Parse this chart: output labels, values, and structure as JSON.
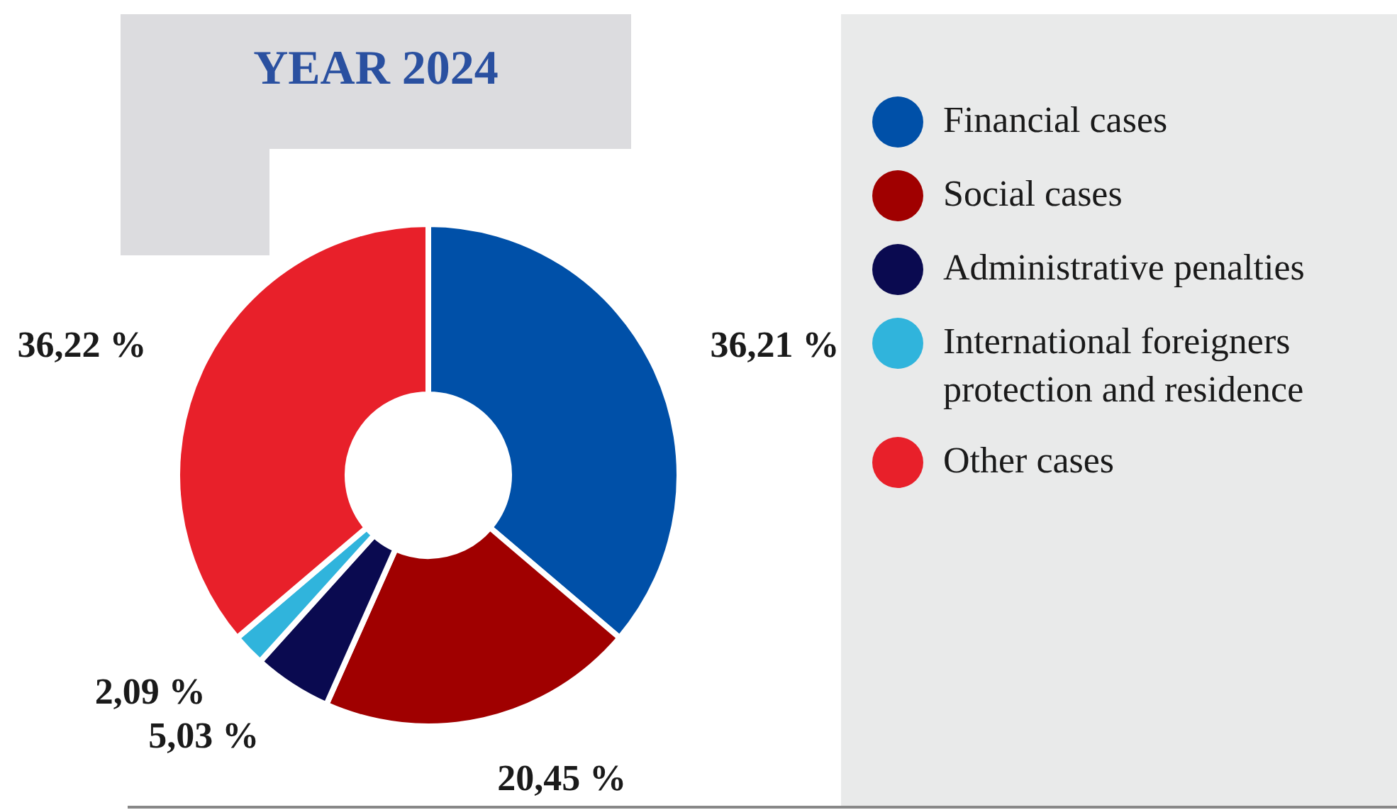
{
  "chart_data": {
    "type": "donut",
    "title": "YEAR 2024",
    "categories": [
      "Financial cases",
      "Social cases",
      "Administrative penalties",
      "International foreigners protection and residence",
      "Other cases"
    ],
    "values": [
      36.21,
      20.45,
      5.03,
      2.09,
      36.22
    ],
    "colors": [
      "#0050a8",
      "#a00000",
      "#0a0a50",
      "#30b4dc",
      "#e8202a"
    ],
    "value_labels": [
      "36,21 %",
      "20,45 %",
      "5,03 %",
      "2,09 %",
      "36,22 %"
    ],
    "legend": "right"
  }
}
